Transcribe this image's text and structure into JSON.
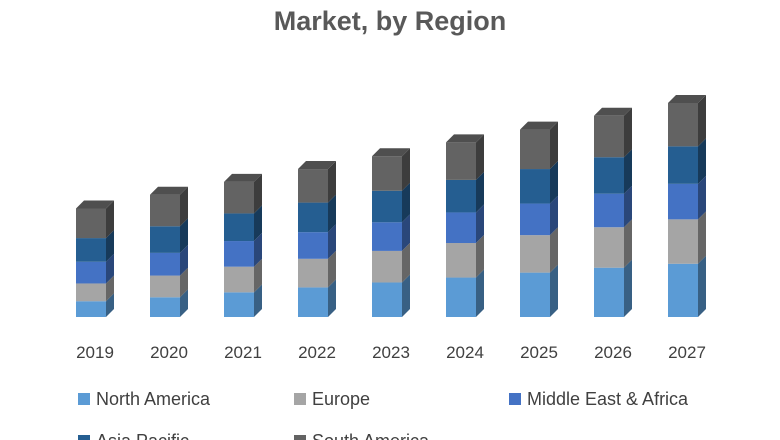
{
  "chart_data": {
    "type": "bar",
    "stacked": true,
    "three_d": true,
    "title": "Market, by Region",
    "xlabel": "",
    "ylabel": "",
    "categories": [
      "2019",
      "2020",
      "2021",
      "2022",
      "2023",
      "2024",
      "2025",
      "2026",
      "2027"
    ],
    "ylim": [
      0,
      220
    ],
    "grid": false,
    "legend_position": "bottom",
    "series": [
      {
        "name": "North America",
        "color": "#5B9BD5",
        "values": [
          16,
          20,
          25,
          30,
          35,
          40,
          45,
          50,
          54
        ]
      },
      {
        "name": "Europe",
        "color": "#A5A5A5",
        "values": [
          18,
          22,
          26,
          29,
          32,
          35,
          38,
          41,
          45
        ]
      },
      {
        "name": "Middle East & Africa",
        "color": "#4472C4",
        "values": [
          22,
          23,
          26,
          27,
          29,
          31,
          32,
          34,
          36
        ]
      },
      {
        "name": "Asia Pacific",
        "color": "#255E91",
        "values": [
          24,
          27,
          28,
          30,
          32,
          33,
          35,
          37,
          38
        ]
      },
      {
        "name": "South America",
        "color": "#636363",
        "values": [
          30,
          32,
          32,
          34,
          35,
          38,
          40,
          42,
          44
        ]
      }
    ]
  }
}
